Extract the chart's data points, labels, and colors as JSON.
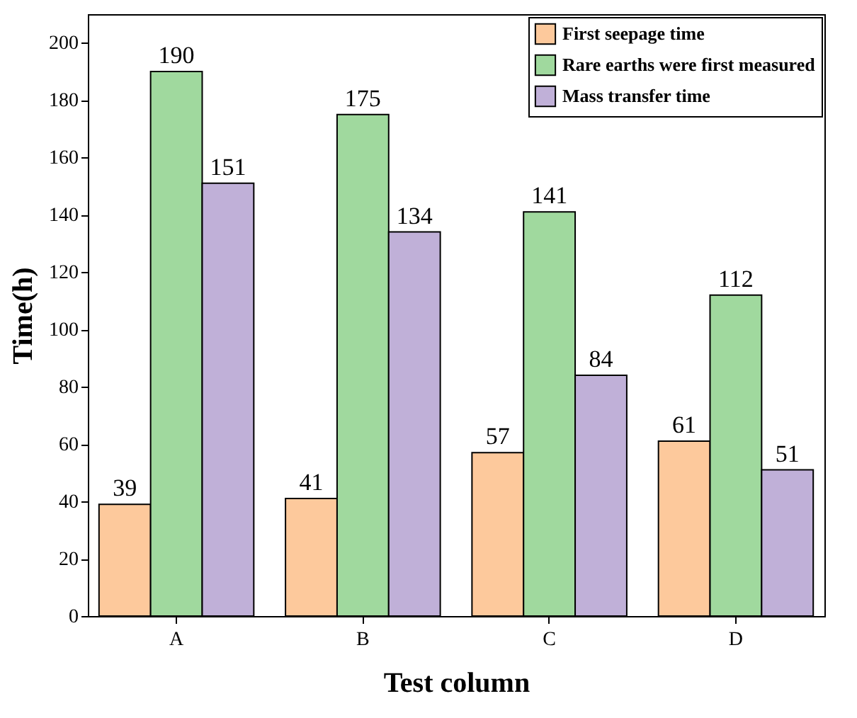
{
  "chart_data": {
    "type": "bar",
    "xlabel": "Test column",
    "ylabel": "Time(h)",
    "categories": [
      "A",
      "B",
      "C",
      "D"
    ],
    "series": [
      {
        "name": "First seepage time",
        "color": "#fdc99c",
        "values": [
          39,
          41,
          57,
          61
        ]
      },
      {
        "name": "Rare earths were first measured",
        "color": "#a0d99e",
        "values": [
          190,
          175,
          141,
          112
        ]
      },
      {
        "name": "Mass transfer time",
        "color": "#c0b0d8",
        "values": [
          151,
          134,
          84,
          51
        ]
      }
    ],
    "ylim": [
      0,
      210
    ],
    "yticks": [
      0,
      20,
      40,
      60,
      80,
      100,
      120,
      140,
      160,
      180,
      200
    ],
    "grid": false,
    "legend": "top right",
    "data_labels": true
  }
}
